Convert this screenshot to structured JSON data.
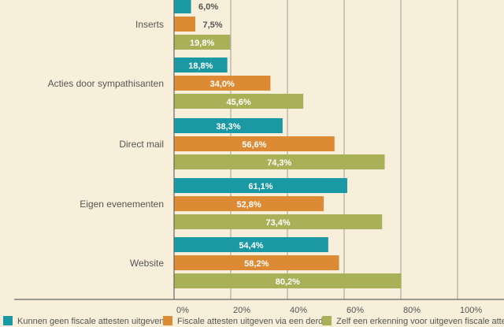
{
  "chart_data": {
    "type": "bar",
    "orientation": "horizontal",
    "categories": [
      "Inserts",
      "Acties door sympathisanten",
      "Direct mail",
      "Eigen evenementen",
      "Website"
    ],
    "series": [
      {
        "name": "Kunnen geen fiscale attesten uitgeven",
        "color": "#1a98a3",
        "values": [
          6.0,
          18.8,
          38.3,
          61.1,
          54.4
        ],
        "labels": [
          "6,0%",
          "18,8%",
          "38,3%",
          "61,1%",
          "54,4%"
        ]
      },
      {
        "name": "Fiscale attesten uitgeven via een derde",
        "color": "#dd8a34",
        "values": [
          7.5,
          34.0,
          56.6,
          52.8,
          58.2
        ],
        "labels": [
          "7,5%",
          "34,0%",
          "56,6%",
          "52,8%",
          "58,2%"
        ]
      },
      {
        "name": "Zelf een erkenning voor uitgeven fiscale attesten",
        "color": "#a9b158",
        "values": [
          19.8,
          45.6,
          74.3,
          73.4,
          80.2
        ],
        "labels": [
          "19,8%",
          "45,6%",
          "74,3%",
          "73,4%",
          "80,2%"
        ]
      }
    ],
    "x_ticks": [
      "0%",
      "20%",
      "40%",
      "60%",
      "80%",
      "100%"
    ],
    "xlim": [
      0,
      100
    ],
    "grid": true,
    "legend_position": "bottom"
  },
  "colors": {
    "background": "#f7efd9",
    "axis": "#666666",
    "grid": "#888888"
  }
}
